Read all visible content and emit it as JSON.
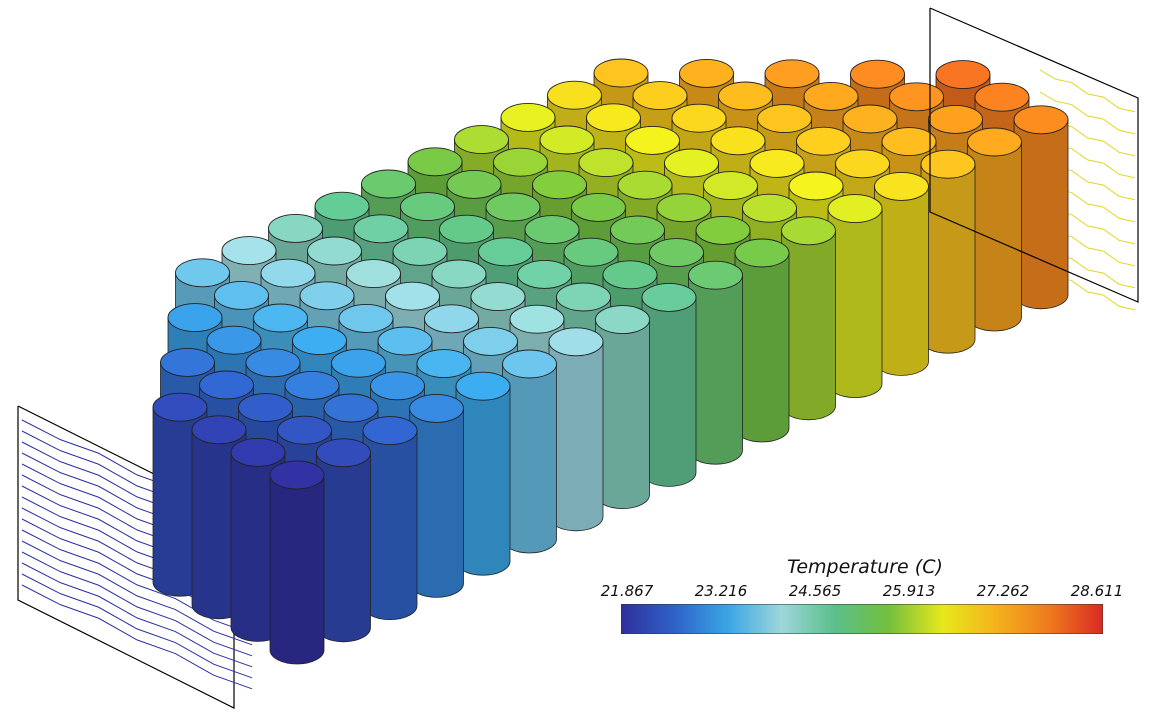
{
  "colorbar": {
    "title": "Temperature (C)",
    "ticks": [
      "21.867",
      "23.216",
      "24.565",
      "25.913",
      "27.262",
      "28.611"
    ],
    "min": 21.867,
    "max": 28.611,
    "colors": [
      "#2f2f9c",
      "#2f62c8",
      "#3aa6e4",
      "#9ed6dc",
      "#5bbf8a",
      "#74bf3c",
      "#e6e81c",
      "#f4b21d",
      "#ef7a1e",
      "#d92a22"
    ]
  },
  "model": {
    "cell_grid": {
      "rows": 7,
      "columns": 17
    },
    "flow_direction": "left-to-right",
    "coldest_side": "inlet (front-left)",
    "hottest_side": "outlet (back-right)"
  }
}
